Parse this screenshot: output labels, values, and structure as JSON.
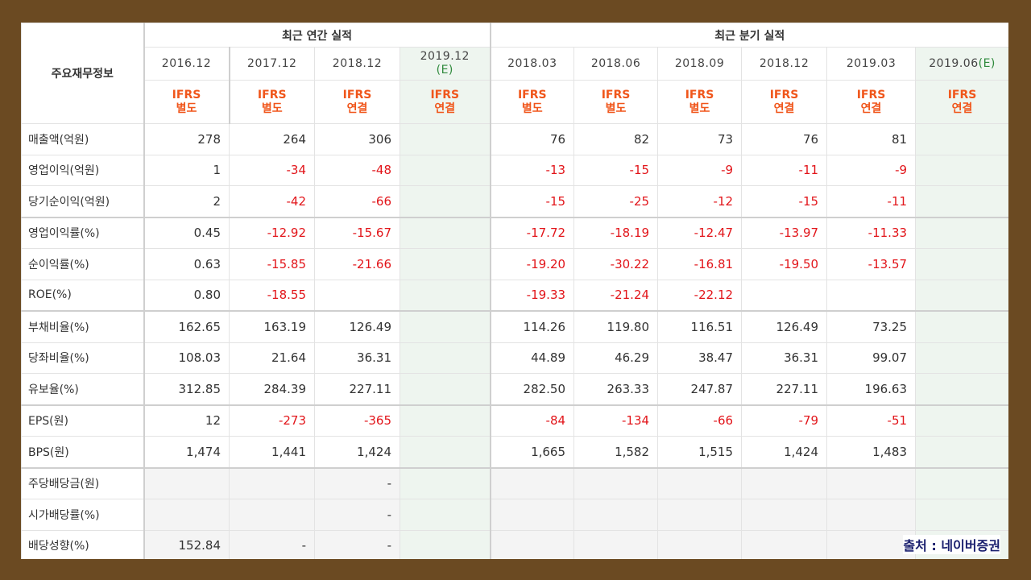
{
  "table": {
    "row_header": "주요재무정보",
    "groups": {
      "annual": "최근 연간 실적",
      "quarterly": "최근 분기 실적"
    },
    "annual": [
      {
        "date": "2016.12",
        "estimate": "",
        "ifrs": "IFRS",
        "basis": "별도"
      },
      {
        "date": "2017.12",
        "estimate": "",
        "ifrs": "IFRS",
        "basis": "별도"
      },
      {
        "date": "2018.12",
        "estimate": "",
        "ifrs": "IFRS",
        "basis": "연결"
      },
      {
        "date": "2019.12",
        "estimate": "(E)",
        "ifrs": "IFRS",
        "basis": "연결"
      }
    ],
    "quarterly": [
      {
        "date": "2018.03",
        "estimate": "",
        "ifrs": "IFRS",
        "basis": "별도"
      },
      {
        "date": "2018.06",
        "estimate": "",
        "ifrs": "IFRS",
        "basis": "별도"
      },
      {
        "date": "2018.09",
        "estimate": "",
        "ifrs": "IFRS",
        "basis": "별도"
      },
      {
        "date": "2018.12",
        "estimate": "",
        "ifrs": "IFRS",
        "basis": "연결"
      },
      {
        "date": "2019.03",
        "estimate": "",
        "ifrs": "IFRS",
        "basis": "연결"
      },
      {
        "date": "2019.06",
        "estimate": "(E)",
        "ifrs": "IFRS",
        "basis": "연결"
      }
    ],
    "rows": [
      {
        "label": "매출액(억원)",
        "values": [
          "278",
          "264",
          "306",
          "",
          "76",
          "82",
          "73",
          "76",
          "81",
          ""
        ]
      },
      {
        "label": "영업이익(억원)",
        "values": [
          "1",
          "-34",
          "-48",
          "",
          "-13",
          "-15",
          "-9",
          "-11",
          "-9",
          ""
        ]
      },
      {
        "label": "당기순이익(억원)",
        "values": [
          "2",
          "-42",
          "-66",
          "",
          "-15",
          "-25",
          "-12",
          "-15",
          "-11",
          ""
        ]
      },
      {
        "label": "영업이익률(%)",
        "values": [
          "0.45",
          "-12.92",
          "-15.67",
          "",
          "-17.72",
          "-18.19",
          "-12.47",
          "-13.97",
          "-11.33",
          ""
        ]
      },
      {
        "label": "순이익률(%)",
        "values": [
          "0.63",
          "-15.85",
          "-21.66",
          "",
          "-19.20",
          "-30.22",
          "-16.81",
          "-19.50",
          "-13.57",
          ""
        ]
      },
      {
        "label": "ROE(%)",
        "values": [
          "0.80",
          "-18.55",
          "",
          "",
          "-19.33",
          "-21.24",
          "-22.12",
          "",
          "",
          ""
        ]
      },
      {
        "label": "부채비율(%)",
        "values": [
          "162.65",
          "163.19",
          "126.49",
          "",
          "114.26",
          "119.80",
          "116.51",
          "126.49",
          "73.25",
          ""
        ]
      },
      {
        "label": "당좌비율(%)",
        "values": [
          "108.03",
          "21.64",
          "36.31",
          "",
          "44.89",
          "46.29",
          "38.47",
          "36.31",
          "99.07",
          ""
        ]
      },
      {
        "label": "유보율(%)",
        "values": [
          "312.85",
          "284.39",
          "227.11",
          "",
          "282.50",
          "263.33",
          "247.87",
          "227.11",
          "196.63",
          ""
        ]
      },
      {
        "label": "EPS(원)",
        "values": [
          "12",
          "-273",
          "-365",
          "",
          "-84",
          "-134",
          "-66",
          "-79",
          "-51",
          ""
        ]
      },
      {
        "label": "BPS(원)",
        "values": [
          "1,474",
          "1,441",
          "1,424",
          "",
          "1,665",
          "1,582",
          "1,515",
          "1,424",
          "1,483",
          ""
        ]
      },
      {
        "label": "주당배당금(원)",
        "values": [
          "",
          "",
          "-",
          "",
          "",
          "",
          "",
          "",
          "",
          ""
        ]
      },
      {
        "label": "시가배당률(%)",
        "values": [
          "",
          "",
          "-",
          "",
          "",
          "",
          "",
          "",
          "",
          ""
        ]
      },
      {
        "label": "배당성향(%)",
        "values": [
          "152.84",
          "-",
          "-",
          "",
          "",
          "",
          "",
          "",
          "",
          ""
        ]
      }
    ]
  },
  "source": "출처 : 네이버증권",
  "colors": {
    "negative": "#e2151a",
    "ifrs": "#f0561b",
    "estimate_bg": "#eef5ef",
    "estimate_text": "#2f8a3c",
    "frame": "#6b4a22"
  }
}
